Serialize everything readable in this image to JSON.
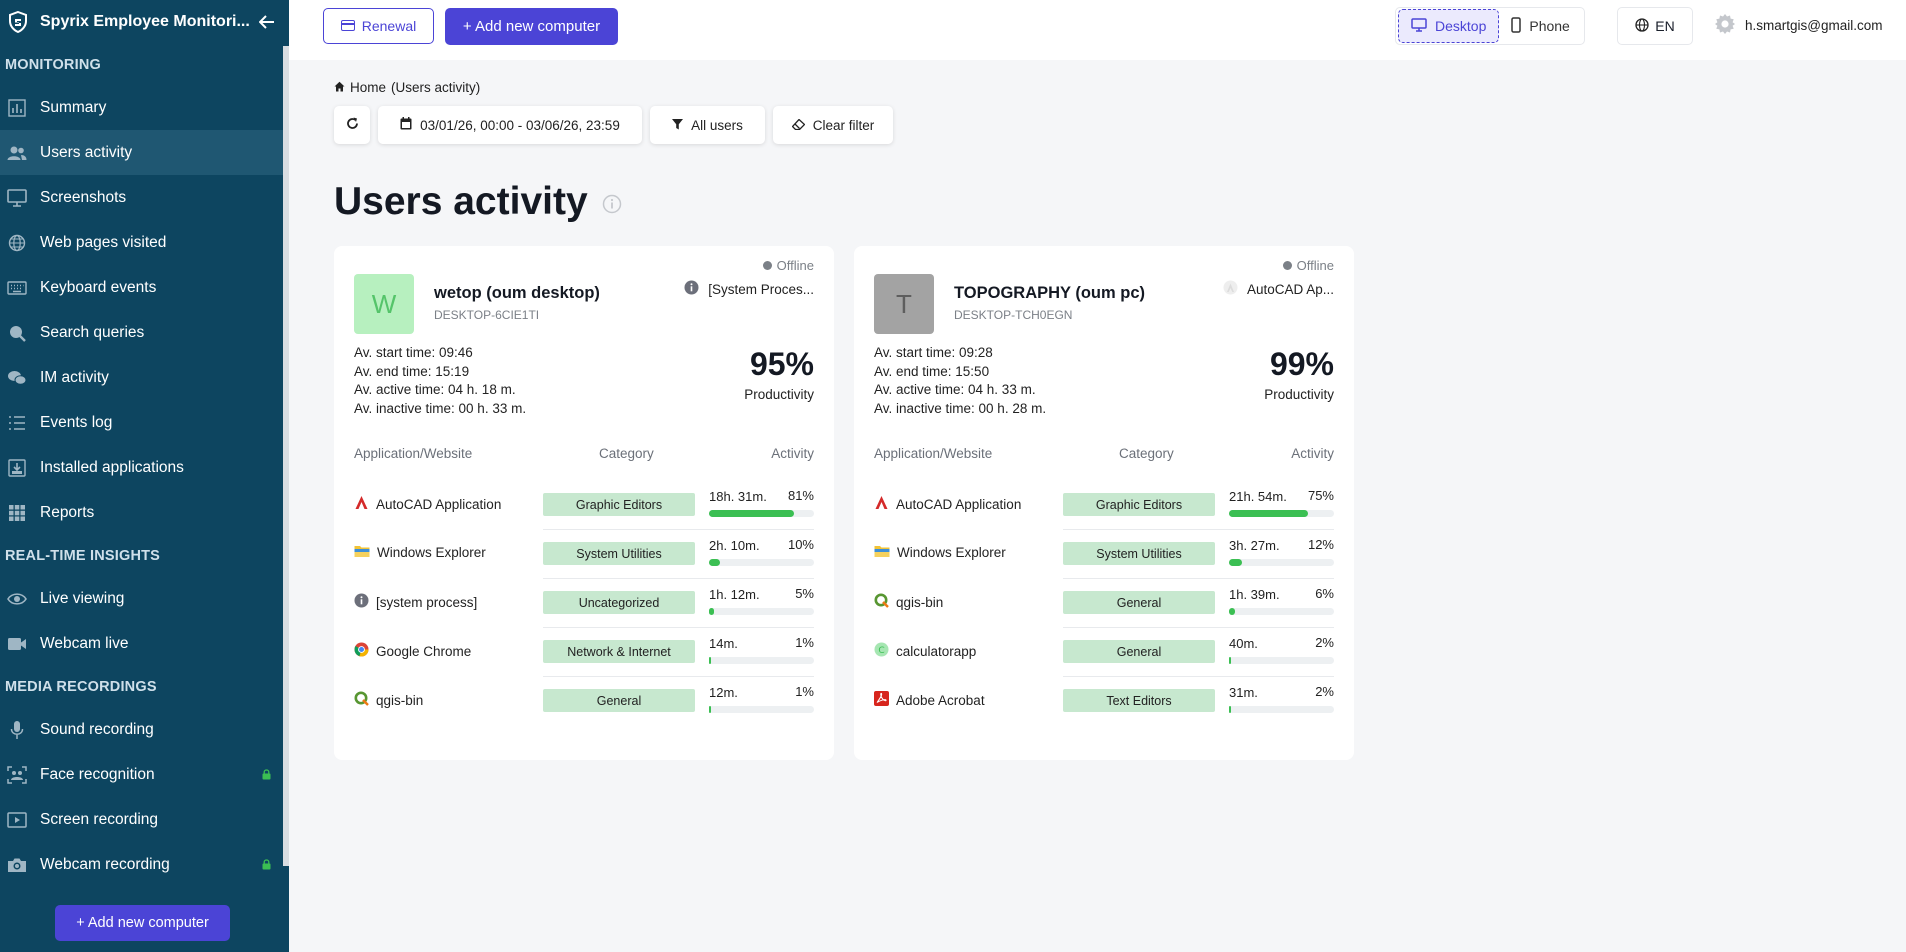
{
  "app": {
    "title": "Spyrix Employee Monitori..."
  },
  "sidebar": {
    "sections": [
      {
        "label": "MONITORING",
        "items": [
          {
            "label": "Summary",
            "icon": "bar-chart-icon",
            "active": false,
            "locked": false
          },
          {
            "label": "Users activity",
            "icon": "users-icon",
            "active": true,
            "locked": false
          },
          {
            "label": "Screenshots",
            "icon": "monitor-icon",
            "active": false,
            "locked": false
          },
          {
            "label": "Web pages visited",
            "icon": "globe-icon",
            "active": false,
            "locked": false
          },
          {
            "label": "Keyboard events",
            "icon": "keyboard-icon",
            "active": false,
            "locked": false
          },
          {
            "label": "Search queries",
            "icon": "search-icon",
            "active": false,
            "locked": false
          },
          {
            "label": "IM activity",
            "icon": "chat-icon",
            "active": false,
            "locked": false
          },
          {
            "label": "Events log",
            "icon": "list-icon",
            "active": false,
            "locked": false
          },
          {
            "label": "Installed applications",
            "icon": "install-icon",
            "active": false,
            "locked": false
          },
          {
            "label": "Reports",
            "icon": "grid-icon",
            "active": false,
            "locked": false
          }
        ]
      },
      {
        "label": "REAL-TIME INSIGHTS",
        "items": [
          {
            "label": "Live viewing",
            "icon": "eye-icon",
            "active": false,
            "locked": false
          },
          {
            "label": "Webcam live",
            "icon": "video-icon",
            "active": false,
            "locked": false
          }
        ]
      },
      {
        "label": "MEDIA RECORDINGS",
        "items": [
          {
            "label": "Sound recording",
            "icon": "mic-icon",
            "active": false,
            "locked": false
          },
          {
            "label": "Face recognition",
            "icon": "face-scan-icon",
            "active": false,
            "locked": true
          },
          {
            "label": "Screen recording",
            "icon": "play-screen-icon",
            "active": false,
            "locked": false
          },
          {
            "label": "Webcam recording",
            "icon": "camera-icon",
            "active": false,
            "locked": true
          }
        ]
      }
    ],
    "add_button": "+ Add new computer"
  },
  "topbar": {
    "renewal": "Renewal",
    "add_computer": "+ Add new computer",
    "desktop": "Desktop",
    "phone": "Phone",
    "lang": "EN",
    "user_email": "h.smartgis@gmail.com"
  },
  "breadcrumb": {
    "home": "Home",
    "current": "(Users activity)"
  },
  "filters": {
    "date_range": "03/01/26, 00:00 - 03/06/26, 23:59",
    "users": "All users",
    "clear": "Clear filter"
  },
  "page": {
    "title": "Users activity"
  },
  "table_headers": {
    "app": "Application/Website",
    "category": "Category",
    "activity": "Activity"
  },
  "cards": [
    {
      "status": "Offline",
      "avatar_letter": "W",
      "avatar_bg": "#b7f0bf",
      "avatar_fg": "#55c46a",
      "name": "wetop (oum desktop)",
      "host": "DESKTOP-6CIE1TI",
      "current_app": "[System Proces...",
      "current_app_icon": "info-icon",
      "stats": [
        "Av. start time: 09:46",
        "Av. end time: 15:19",
        "Av. active time: 04 h. 18 m.",
        "Av. inactive time: 00 h. 33 m."
      ],
      "productivity": "95%",
      "productivity_label": "Productivity",
      "rows": [
        {
          "app": "AutoCAD Application",
          "icon": "autocad-icon",
          "category": "Graphic Editors",
          "time": "18h. 31m.",
          "percent": "81%",
          "fill": 0.81
        },
        {
          "app": "Windows Explorer",
          "icon": "folder-icon",
          "category": "System Utilities",
          "time": "2h. 10m.",
          "percent": "10%",
          "fill": 0.1
        },
        {
          "app": "[system process]",
          "icon": "info-icon",
          "category": "Uncategorized",
          "time": "1h. 12m.",
          "percent": "5%",
          "fill": 0.05
        },
        {
          "app": "Google Chrome",
          "icon": "chrome-icon",
          "category": "Network & Internet",
          "time": "14m.",
          "percent": "1%",
          "fill": 0.01
        },
        {
          "app": "qgis-bin",
          "icon": "qgis-icon",
          "category": "General",
          "time": "12m.",
          "percent": "1%",
          "fill": 0.01
        }
      ]
    },
    {
      "status": "Offline",
      "avatar_letter": "T",
      "avatar_bg": "#a3a3a3",
      "avatar_fg": "#5e5e5e",
      "name": "TOPOGRAPHY (oum pc)",
      "host": "DESKTOP-TCH0EGN",
      "current_app": "AutoCAD Ap...",
      "current_app_icon": "autocad-faded-icon",
      "stats": [
        "Av. start time: 09:28",
        "Av. end time: 15:50",
        "Av. active time: 04 h. 33 m.",
        "Av. inactive time: 00 h. 28 m."
      ],
      "productivity": "99%",
      "productivity_label": "Productivity",
      "rows": [
        {
          "app": "AutoCAD Application",
          "icon": "autocad-icon",
          "category": "Graphic Editors",
          "time": "21h. 54m.",
          "percent": "75%",
          "fill": 0.75
        },
        {
          "app": "Windows Explorer",
          "icon": "folder-icon",
          "category": "System Utilities",
          "time": "3h. 27m.",
          "percent": "12%",
          "fill": 0.12
        },
        {
          "app": "qgis-bin",
          "icon": "qgis-icon",
          "category": "General",
          "time": "1h. 39m.",
          "percent": "6%",
          "fill": 0.06
        },
        {
          "app": "calculatorapp",
          "icon": "calculator-icon",
          "category": "General",
          "time": "40m.",
          "percent": "2%",
          "fill": 0.02
        },
        {
          "app": "Adobe Acrobat",
          "icon": "acrobat-icon",
          "category": "Text Editors",
          "time": "31m.",
          "percent": "2%",
          "fill": 0.02
        }
      ]
    }
  ]
}
